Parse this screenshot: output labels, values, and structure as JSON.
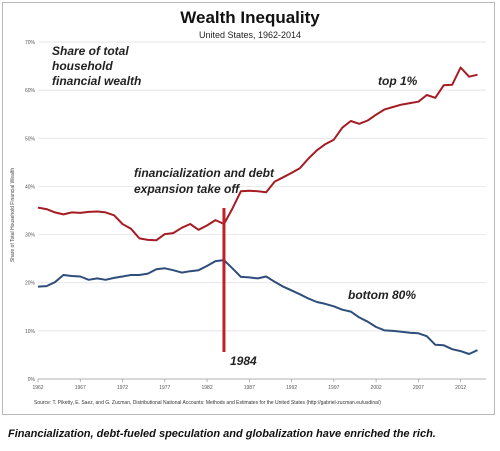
{
  "chart_data": {
    "type": "line",
    "title": "Wealth Inequality",
    "subtitle": "United States, 1962-2014",
    "ylabel": "Share of Total Household Financial Wealth",
    "y_note": "Share of total household financial wealth",
    "ylim": [
      0,
      70
    ],
    "xlim": [
      1962,
      2015
    ],
    "y_ticks": [
      0,
      10,
      20,
      30,
      40,
      50,
      60,
      70
    ],
    "y_tick_labels": [
      "0%",
      "10%",
      "20%",
      "30%",
      "40%",
      "50%",
      "60%",
      "70%"
    ],
    "x_ticks": [
      1962,
      1967,
      1972,
      1977,
      1982,
      1987,
      1992,
      1997,
      2002,
      2007,
      2012
    ],
    "x_tick_labels": [
      "1962",
      "1967",
      "1972",
      "1977",
      "1982",
      "1987",
      "1992",
      "1997",
      "2002",
      "2007",
      "2012"
    ],
    "grid": true,
    "series": [
      {
        "name": "top 1%",
        "color": "#a51c24",
        "x": [
          1962,
          1963,
          1964,
          1965,
          1966,
          1967,
          1968,
          1969,
          1970,
          1971,
          1972,
          1973,
          1974,
          1975,
          1976,
          1977,
          1978,
          1979,
          1980,
          1981,
          1982,
          1983,
          1984,
          1985,
          1986,
          1987,
          1988,
          1989,
          1990,
          1991,
          1992,
          1993,
          1994,
          1995,
          1996,
          1997,
          1998,
          1999,
          2000,
          2001,
          2002,
          2003,
          2004,
          2005,
          2006,
          2007,
          2008,
          2009,
          2010,
          2011,
          2012,
          2013,
          2014
        ],
        "values": [
          35.6,
          35.3,
          34.6,
          34.2,
          34.6,
          34.5,
          34.7,
          34.8,
          34.6,
          34.0,
          32.2,
          31.2,
          29.2,
          28.9,
          28.8,
          30.1,
          30.3,
          31.4,
          32.2,
          31.0,
          31.9,
          33.0,
          32.2,
          35.4,
          39.0,
          39.1,
          39.0,
          38.8,
          41.0,
          41.9,
          42.8,
          43.8,
          45.8,
          47.5,
          48.8,
          49.7,
          52.2,
          53.6,
          53.0,
          53.7,
          54.9,
          56.0,
          56.5,
          57.0,
          57.3,
          57.6,
          59.0,
          58.4,
          61.0,
          61.1,
          64.7,
          62.8,
          63.2
        ]
      },
      {
        "name": "bottom 80%",
        "color": "#2e4d7b",
        "x": [
          1962,
          1963,
          1964,
          1965,
          1966,
          1967,
          1968,
          1969,
          1970,
          1971,
          1972,
          1973,
          1974,
          1975,
          1976,
          1977,
          1978,
          1979,
          1980,
          1981,
          1982,
          1983,
          1984,
          1985,
          1986,
          1987,
          1988,
          1989,
          1990,
          1991,
          1992,
          1993,
          1994,
          1995,
          1996,
          1997,
          1998,
          1999,
          2000,
          2001,
          2002,
          2003,
          2004,
          2005,
          2006,
          2007,
          2008,
          2009,
          2010,
          2011,
          2012,
          2013,
          2014
        ],
        "values": [
          19.2,
          19.3,
          20.1,
          21.6,
          21.4,
          21.3,
          20.6,
          20.9,
          20.6,
          21.0,
          21.3,
          21.6,
          21.6,
          21.9,
          22.8,
          23.0,
          22.6,
          22.1,
          22.4,
          22.6,
          23.5,
          24.5,
          24.7,
          23.0,
          21.2,
          21.1,
          20.9,
          21.3,
          20.2,
          19.2,
          18.4,
          17.6,
          16.7,
          16.0,
          15.6,
          15.1,
          14.4,
          14.0,
          12.8,
          11.9,
          10.8,
          10.1,
          10.0,
          9.8,
          9.6,
          9.5,
          8.9,
          7.1,
          7.0,
          6.2,
          5.8,
          5.2,
          6.0
        ]
      }
    ],
    "annotations": {
      "event_year": 1984,
      "event_label": "1984",
      "event_text_1": "financialization and debt",
      "event_text_2": "expansion take off",
      "top_label": "top 1%",
      "bottom_label": "bottom 80%"
    },
    "source": "Source: T. Piketty, E. Saez, and G. Zucman, Distributional National Accounts: Methods and Estimates for the United States (http://gabriel-zucman.eu/usdina/)",
    "caption": "Financialization, debt-fueled speculation and globalization have enriched the rich.",
    "event_color": "#c0202a"
  }
}
